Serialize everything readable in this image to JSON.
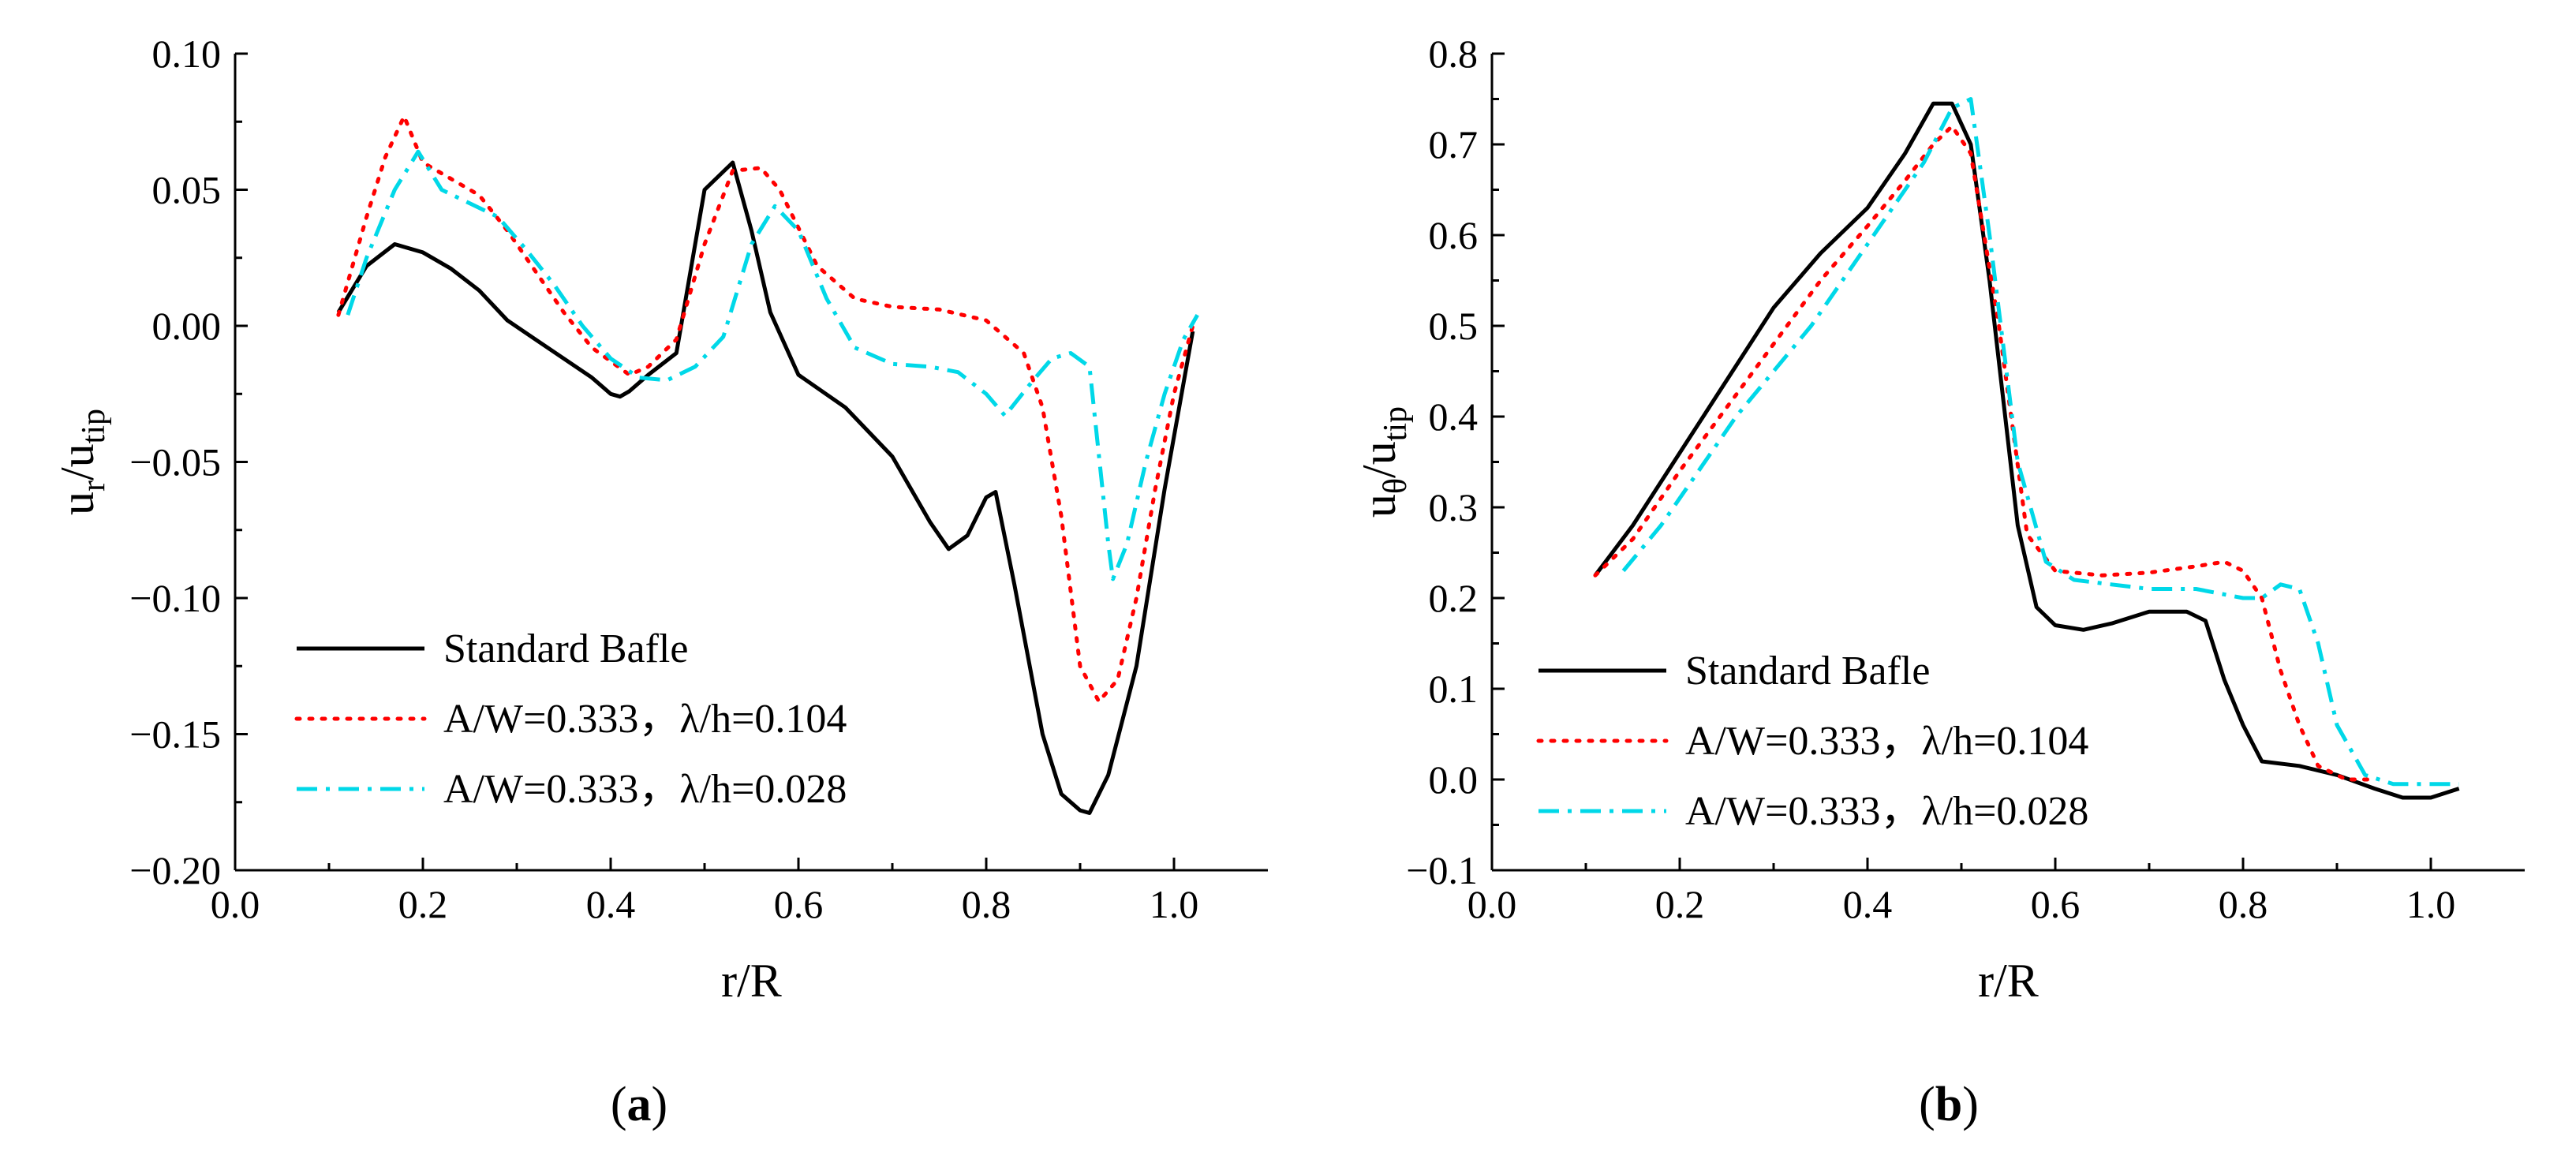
{
  "chart_data": [
    {
      "type": "line",
      "panel_label": "a",
      "xlabel": "r/R",
      "ylabel": {
        "base": "u",
        "base_sub": "r",
        "sep": "/u",
        "sep_sub": "tip"
      },
      "xlim": [
        0.0,
        1.1
      ],
      "ylim": [
        -0.2,
        0.1
      ],
      "x_ticks": [
        "0.0",
        "0.2",
        "0.4",
        "0.6",
        "0.8",
        "1.0"
      ],
      "y_ticks": [
        "0.10",
        "0.05",
        "0.00",
        "−0.05",
        "−0.10",
        "−0.15",
        "−0.20"
      ],
      "grid": false,
      "legend_position": "bottom-left",
      "series": [
        {
          "name": "Standard Bafle",
          "color": "#000000",
          "dash": "solid",
          "x": [
            0.11,
            0.14,
            0.17,
            0.2,
            0.23,
            0.26,
            0.29,
            0.32,
            0.35,
            0.38,
            0.4,
            0.41,
            0.42,
            0.44,
            0.47,
            0.5,
            0.53,
            0.55,
            0.57,
            0.6,
            0.65,
            0.7,
            0.74,
            0.76,
            0.78,
            0.8,
            0.81,
            0.83,
            0.86,
            0.88,
            0.9,
            0.91,
            0.93,
            0.96,
            0.99,
            1.02
          ],
          "y": [
            0.005,
            0.022,
            0.03,
            0.027,
            0.021,
            0.013,
            0.002,
            -0.005,
            -0.012,
            -0.019,
            -0.025,
            -0.026,
            -0.024,
            -0.018,
            -0.01,
            0.05,
            0.06,
            0.035,
            0.005,
            -0.018,
            -0.03,
            -0.048,
            -0.072,
            -0.082,
            -0.077,
            -0.063,
            -0.061,
            -0.095,
            -0.15,
            -0.172,
            -0.178,
            -0.179,
            -0.165,
            -0.125,
            -0.06,
            -0.002
          ]
        },
        {
          "name": "A/W=0.333，λ/h=0.104",
          "color": "#ff0000",
          "dash": "dotted",
          "x": [
            0.11,
            0.14,
            0.16,
            0.18,
            0.2,
            0.23,
            0.26,
            0.29,
            0.32,
            0.35,
            0.38,
            0.42,
            0.44,
            0.47,
            0.5,
            0.53,
            0.56,
            0.58,
            0.62,
            0.66,
            0.7,
            0.75,
            0.8,
            0.84,
            0.86,
            0.88,
            0.9,
            0.92,
            0.94,
            0.96,
            0.98,
            1.0,
            1.02
          ],
          "y": [
            0.004,
            0.04,
            0.062,
            0.077,
            0.06,
            0.054,
            0.048,
            0.035,
            0.02,
            0.005,
            -0.008,
            -0.018,
            -0.015,
            -0.005,
            0.03,
            0.057,
            0.058,
            0.05,
            0.022,
            0.01,
            0.007,
            0.006,
            0.002,
            -0.01,
            -0.03,
            -0.07,
            -0.125,
            -0.138,
            -0.13,
            -0.1,
            -0.06,
            -0.025,
            0.0
          ]
        },
        {
          "name": "A/W=0.333，λ/h=0.028",
          "color": "#00d8e8",
          "dash": "dashdot",
          "x": [
            0.12,
            0.14,
            0.17,
            0.195,
            0.22,
            0.25,
            0.28,
            0.31,
            0.34,
            0.37,
            0.4,
            0.43,
            0.46,
            0.49,
            0.52,
            0.55,
            0.575,
            0.6,
            0.63,
            0.66,
            0.7,
            0.74,
            0.77,
            0.8,
            0.82,
            0.85,
            0.87,
            0.89,
            0.91,
            0.93,
            0.935,
            0.95,
            0.97,
            0.99,
            1.01,
            1.025
          ],
          "y": [
            0.004,
            0.025,
            0.05,
            0.064,
            0.05,
            0.045,
            0.04,
            0.028,
            0.015,
            0.0,
            -0.012,
            -0.019,
            -0.02,
            -0.015,
            -0.004,
            0.03,
            0.044,
            0.035,
            0.01,
            -0.008,
            -0.014,
            -0.015,
            -0.017,
            -0.025,
            -0.033,
            -0.02,
            -0.012,
            -0.01,
            -0.015,
            -0.08,
            -0.093,
            -0.08,
            -0.05,
            -0.025,
            -0.005,
            0.004
          ]
        }
      ]
    },
    {
      "type": "line",
      "panel_label": "b",
      "xlabel": "r/R",
      "ylabel": {
        "base": "u",
        "base_sub": "θ",
        "sep": "/u",
        "sep_sub": "tip"
      },
      "xlim": [
        0.0,
        1.1
      ],
      "ylim": [
        -0.1,
        0.8
      ],
      "x_ticks": [
        "0.0",
        "0.2",
        "0.4",
        "0.6",
        "0.8",
        "1.0"
      ],
      "y_ticks": [
        "0.8",
        "0.7",
        "0.6",
        "0.5",
        "0.4",
        "0.3",
        "0.2",
        "0.1",
        "0.0",
        "−0.1"
      ],
      "grid": false,
      "legend_position": "bottom-left",
      "series": [
        {
          "name": "Standard Bafle",
          "color": "#000000",
          "dash": "solid",
          "x": [
            0.11,
            0.15,
            0.2,
            0.25,
            0.3,
            0.35,
            0.4,
            0.44,
            0.47,
            0.49,
            0.51,
            0.53,
            0.56,
            0.58,
            0.6,
            0.63,
            0.66,
            0.7,
            0.74,
            0.76,
            0.78,
            0.8,
            0.82,
            0.86,
            0.9,
            0.94,
            0.97,
            1.0,
            1.03
          ],
          "y": [
            0.225,
            0.28,
            0.36,
            0.44,
            0.52,
            0.58,
            0.63,
            0.69,
            0.745,
            0.745,
            0.7,
            0.55,
            0.28,
            0.19,
            0.17,
            0.165,
            0.172,
            0.185,
            0.185,
            0.175,
            0.11,
            0.06,
            0.02,
            0.015,
            0.005,
            -0.01,
            -0.02,
            -0.02,
            -0.01
          ]
        },
        {
          "name": "A/W=0.333，λ/h=0.104",
          "color": "#ff0000",
          "dash": "dotted",
          "x": [
            0.11,
            0.15,
            0.2,
            0.25,
            0.3,
            0.35,
            0.4,
            0.44,
            0.47,
            0.49,
            0.51,
            0.54,
            0.57,
            0.6,
            0.65,
            0.7,
            0.75,
            0.78,
            0.8,
            0.82,
            0.84,
            0.86,
            0.88,
            0.91,
            0.94
          ],
          "y": [
            0.225,
            0.265,
            0.34,
            0.41,
            0.48,
            0.55,
            0.61,
            0.66,
            0.7,
            0.72,
            0.69,
            0.5,
            0.27,
            0.23,
            0.225,
            0.228,
            0.235,
            0.24,
            0.23,
            0.2,
            0.12,
            0.06,
            0.015,
            0.0,
            0.0
          ]
        },
        {
          "name": "A/W=0.333，λ/h=0.028",
          "color": "#00d8e8",
          "dash": "dashdot",
          "x": [
            0.14,
            0.18,
            0.22,
            0.26,
            0.3,
            0.34,
            0.38,
            0.42,
            0.46,
            0.49,
            0.51,
            0.53,
            0.56,
            0.59,
            0.62,
            0.66,
            0.7,
            0.75,
            0.8,
            0.82,
            0.84,
            0.86,
            0.88,
            0.9,
            0.93,
            0.96,
            1.0,
            1.03
          ],
          "y": [
            0.23,
            0.28,
            0.34,
            0.4,
            0.45,
            0.5,
            0.56,
            0.62,
            0.68,
            0.74,
            0.75,
            0.6,
            0.35,
            0.24,
            0.22,
            0.215,
            0.21,
            0.21,
            0.2,
            0.2,
            0.215,
            0.21,
            0.15,
            0.06,
            0.005,
            -0.005,
            -0.005,
            -0.005
          ]
        }
      ]
    }
  ]
}
